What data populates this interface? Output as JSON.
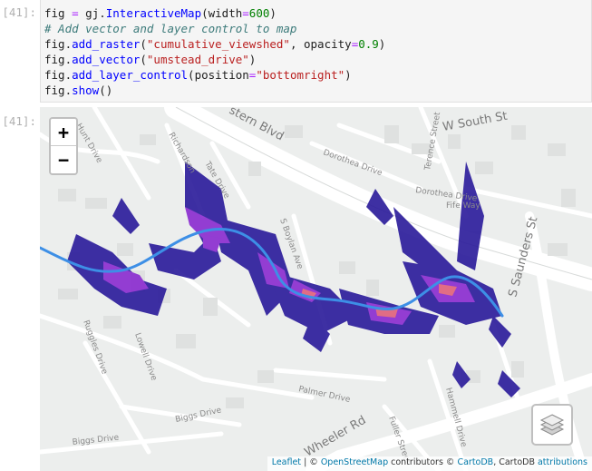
{
  "input_cell": {
    "prompt": "[41]:",
    "lines": [
      [
        {
          "t": "var",
          "s": "fig "
        },
        {
          "t": "op",
          "s": "="
        },
        {
          "t": "var",
          "s": " gj."
        },
        {
          "t": "fn",
          "s": "InteractiveMap"
        },
        {
          "t": "var",
          "s": "(width"
        },
        {
          "t": "op",
          "s": "="
        },
        {
          "t": "num",
          "s": "600"
        },
        {
          "t": "var",
          "s": ")"
        }
      ],
      [
        {
          "t": "cm",
          "s": "# Add vector and layer control to map"
        }
      ],
      [
        {
          "t": "var",
          "s": "fig."
        },
        {
          "t": "fn",
          "s": "add_raster"
        },
        {
          "t": "var",
          "s": "("
        },
        {
          "t": "str",
          "s": "\"cumulative_viewshed\""
        },
        {
          "t": "var",
          "s": ", opacity"
        },
        {
          "t": "op",
          "s": "="
        },
        {
          "t": "num",
          "s": "0.9"
        },
        {
          "t": "var",
          "s": ")"
        }
      ],
      [
        {
          "t": "var",
          "s": "fig."
        },
        {
          "t": "fn",
          "s": "add_vector"
        },
        {
          "t": "var",
          "s": "("
        },
        {
          "t": "str",
          "s": "\"umstead_drive\""
        },
        {
          "t": "var",
          "s": ")"
        }
      ],
      [
        {
          "t": "var",
          "s": "fig."
        },
        {
          "t": "fn",
          "s": "add_layer_control"
        },
        {
          "t": "var",
          "s": "(position"
        },
        {
          "t": "op",
          "s": "="
        },
        {
          "t": "str",
          "s": "\"bottomright\""
        },
        {
          "t": "var",
          "s": ")"
        }
      ],
      [
        {
          "t": "var",
          "s": "fig."
        },
        {
          "t": "fn",
          "s": "show"
        },
        {
          "t": "var",
          "s": "()"
        }
      ]
    ]
  },
  "output_cell": {
    "prompt": "[41]:",
    "map": {
      "zoom_in_label": "+",
      "zoom_out_label": "−",
      "layer_control_icon": "layers-icon",
      "street_labels": {
        "hunt_drive": "Hunt Drive",
        "eastern_blvd": "stern Blvd",
        "w_south_st": "W South St",
        "dorothea": "Dorothea Drive",
        "dorothea_2": "Dorothea Drive",
        "fife_way": "Fife Way",
        "s_saunders": "S Saunders St",
        "wheeler_rd": "Wheeler Rd",
        "palmer": "Palmer Drive",
        "biggs_1": "Biggs Drive",
        "biggs_2": "Biggs Drive",
        "ruggles": "Ruggles Drive",
        "lowell": "Lowell Drive",
        "hammell": "Hammell Drive",
        "fuller": "Fuller Street",
        "boylan": "S Boylan Ave",
        "tate": "Tate Drive",
        "richards": "Richardson",
        "terence": "Terence Street"
      },
      "colors": {
        "vector_line": "#3d8fe6",
        "viewshed_low": "#2a1a9a",
        "viewshed_mid": "#8a2ad0",
        "viewshed_high": "#e0607a"
      }
    },
    "attribution": {
      "leaflet": "Leaflet",
      "sep": " | © ",
      "osm": "OpenStreetMap",
      "contrib": " contributors © ",
      "carto": "CartoDB",
      "carto_plain": ", CartoDB ",
      "attributions": "attributions"
    }
  }
}
